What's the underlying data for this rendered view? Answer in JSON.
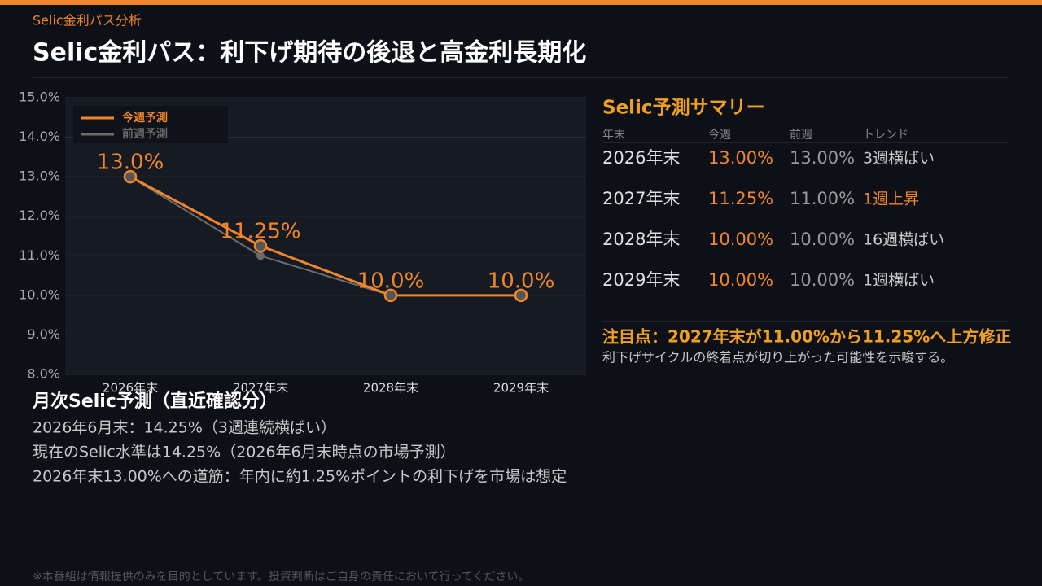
{
  "header": {
    "kicker": "Selic金利パス分析",
    "title": "Selic金利パス：利下げ期待の後退と高金利長期化"
  },
  "chart_data": {
    "type": "line",
    "categories": [
      "2026年末",
      "2027年末",
      "2028年末",
      "2029年末"
    ],
    "series": [
      {
        "name": "今週予測",
        "color": "#f0862a",
        "values": [
          13.0,
          11.25,
          10.0,
          10.0
        ],
        "value_labels": [
          "13.0%",
          "11.25%",
          "10.0%",
          "10.0%"
        ]
      },
      {
        "name": "前週予測",
        "color": "#6b6b6b",
        "values": [
          13.0,
          11.0,
          10.0,
          10.0
        ]
      }
    ],
    "ylim": [
      8,
      15
    ],
    "yticks": [
      {
        "value": 8,
        "label": "8.0%"
      },
      {
        "value": 9,
        "label": "9.0%"
      },
      {
        "value": 10,
        "label": "10.0%"
      },
      {
        "value": 11,
        "label": "11.0%"
      },
      {
        "value": 12,
        "label": "12.0%"
      },
      {
        "value": 13,
        "label": "13.0%"
      },
      {
        "value": 14,
        "label": "14.0%"
      },
      {
        "value": 15,
        "label": "15.0%"
      }
    ],
    "grid": true,
    "legend": "upper-left"
  },
  "summary": {
    "title": "Selic予測サマリー",
    "columns": [
      "年末",
      "今週",
      "前週",
      "トレンド"
    ],
    "rows": [
      {
        "label": "2026年末",
        "this_week": "13.00%",
        "last_week": "13.00%",
        "trend": "3週横ばい",
        "trend_color": "#c8c8c8"
      },
      {
        "label": "2027年末",
        "this_week": "11.25%",
        "last_week": "11.00%",
        "trend": "1週上昇",
        "trend_color": "#f0862a"
      },
      {
        "label": "2028年末",
        "this_week": "10.00%",
        "last_week": "10.00%",
        "trend": "16週横ばい",
        "trend_color": "#c8c8c8"
      },
      {
        "label": "2029年末",
        "this_week": "10.00%",
        "last_week": "10.00%",
        "trend": "1週横ばい",
        "trend_color": "#c8c8c8"
      }
    ]
  },
  "note": {
    "headline": "注目点：2027年末が11.00%から11.25%へ上方修正",
    "body": "利下げサイクルの終着点が切り上がった可能性を示唆する。"
  },
  "monthly": {
    "title": "月次Selic予測（直近確認分）",
    "lines": [
      "2026年6月末：14.25%（3週連続横ばい）",
      "現在のSelic水準は14.25%（2026年6月末時点の市場予測）",
      "2026年末13.00%への道筋：年内に約1.25%ポイントの利下げを市場は想定"
    ]
  },
  "footer": "※本番組は情報提供のみを目的としています。投資判断はご自身の責任において行ってください。"
}
